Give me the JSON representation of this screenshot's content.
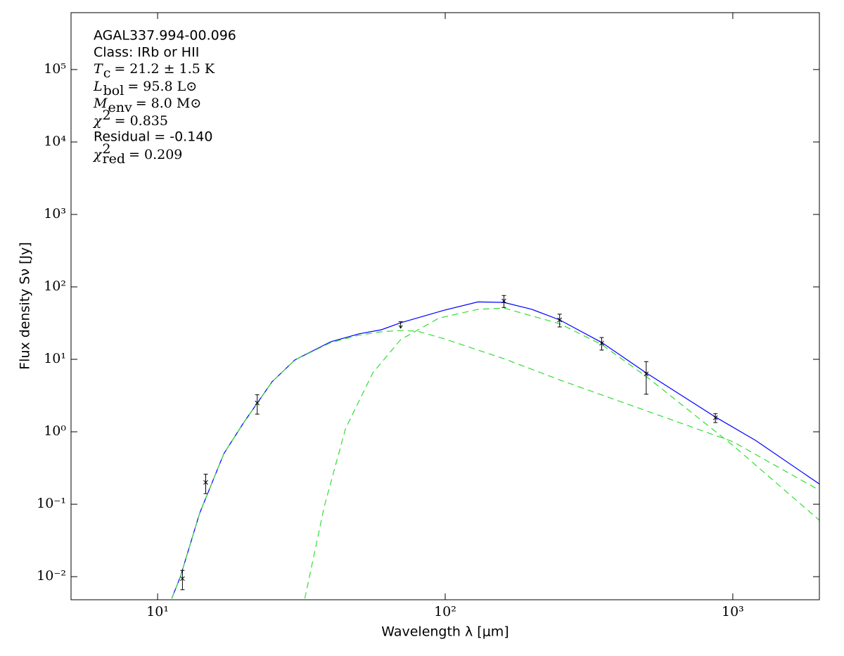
{
  "chart_data": {
    "type": "line",
    "xlabel": "Wavelength λ [μm]",
    "ylabel": "Flux density Sν [Jy]",
    "log_x": true,
    "log_y": true,
    "xlim": [
      5,
      2000
    ],
    "ylim": [
      0.0048,
      610000
    ],
    "xticks": [
      {
        "value": 10,
        "label": "10¹"
      },
      {
        "value": 100,
        "label": "10²"
      },
      {
        "value": 1000,
        "label": "10³"
      }
    ],
    "yticks": [
      {
        "value": 0.01,
        "label": "10⁻²"
      },
      {
        "value": 0.1,
        "label": "10⁻¹"
      },
      {
        "value": 1,
        "label": "10⁰"
      },
      {
        "value": 10,
        "label": "10¹"
      },
      {
        "value": 100,
        "label": "10²"
      },
      {
        "value": 1000,
        "label": "10³"
      },
      {
        "value": 10000,
        "label": "10⁴"
      },
      {
        "value": 100000,
        "label": "10⁵"
      }
    ],
    "annotations": [
      {
        "text": "AGAL337.994-00.096"
      },
      {
        "text": "Class: IRb or HII"
      },
      {
        "symbol": "T",
        "sub": "c",
        "text": "= 21.2 ± 1.5 K"
      },
      {
        "symbol": "L",
        "sub": "bol",
        "text": "= 95.8 L⊙"
      },
      {
        "symbol": "M",
        "sub": "env",
        "text": "= 8.0 M⊙"
      },
      {
        "symbol": "χ",
        "sup": "2",
        "text": "= 0.835"
      },
      {
        "text": "Residual = -0.140"
      },
      {
        "symbol": "χ",
        "sup": "2",
        "sub": "red",
        "text": "= 0.209"
      }
    ],
    "series": [
      {
        "color": "#0000ff",
        "dashed": false,
        "x": [
          11.2,
          12,
          14,
          17,
          20,
          25,
          30,
          40,
          50,
          60,
          70,
          100,
          130,
          160,
          200,
          250,
          350,
          500,
          870,
          1200,
          2000
        ],
        "values": [
          0.005,
          0.01,
          0.075,
          0.5,
          1.37,
          4.9,
          9.8,
          17.5,
          22.4,
          25.6,
          32,
          48,
          62,
          61,
          49,
          35,
          17.1,
          6.5,
          1.6,
          0.76,
          0.19
        ]
      },
      {
        "color": "#33dd33",
        "dashed": true,
        "x": [
          11.2,
          12,
          14,
          17,
          20,
          25,
          30,
          40,
          50,
          60,
          70,
          80,
          100,
          160,
          250,
          500,
          1000,
          2000
        ],
        "values": [
          0.005,
          0.01,
          0.075,
          0.5,
          1.37,
          4.9,
          9.8,
          17,
          21.5,
          24,
          25,
          24.5,
          19,
          10.2,
          5.2,
          1.95,
          0.73,
          0.156
        ]
      },
      {
        "color": "#33dd33",
        "dashed": true,
        "x": [
          32.5,
          38,
          45,
          56,
          70,
          95,
          130,
          160,
          250,
          350,
          500,
          1000,
          2000
        ],
        "values": [
          0.005,
          0.094,
          1.1,
          6.5,
          18.7,
          37,
          49,
          51,
          31,
          16,
          5.8,
          0.65,
          0.06
        ]
      }
    ],
    "points": {
      "x": [
        12.2,
        14.7,
        22.2,
        160,
        250,
        350,
        500,
        870
      ],
      "values": [
        0.0094,
        0.2,
        2.5,
        64,
        35,
        16.7,
        6.3,
        1.56
      ],
      "errors": [
        0.0028,
        0.06,
        0.75,
        12,
        7,
        3.3,
        3,
        0.22
      ]
    },
    "upper_limits": {
      "x": [
        70
      ],
      "values": [
        33
      ]
    }
  }
}
